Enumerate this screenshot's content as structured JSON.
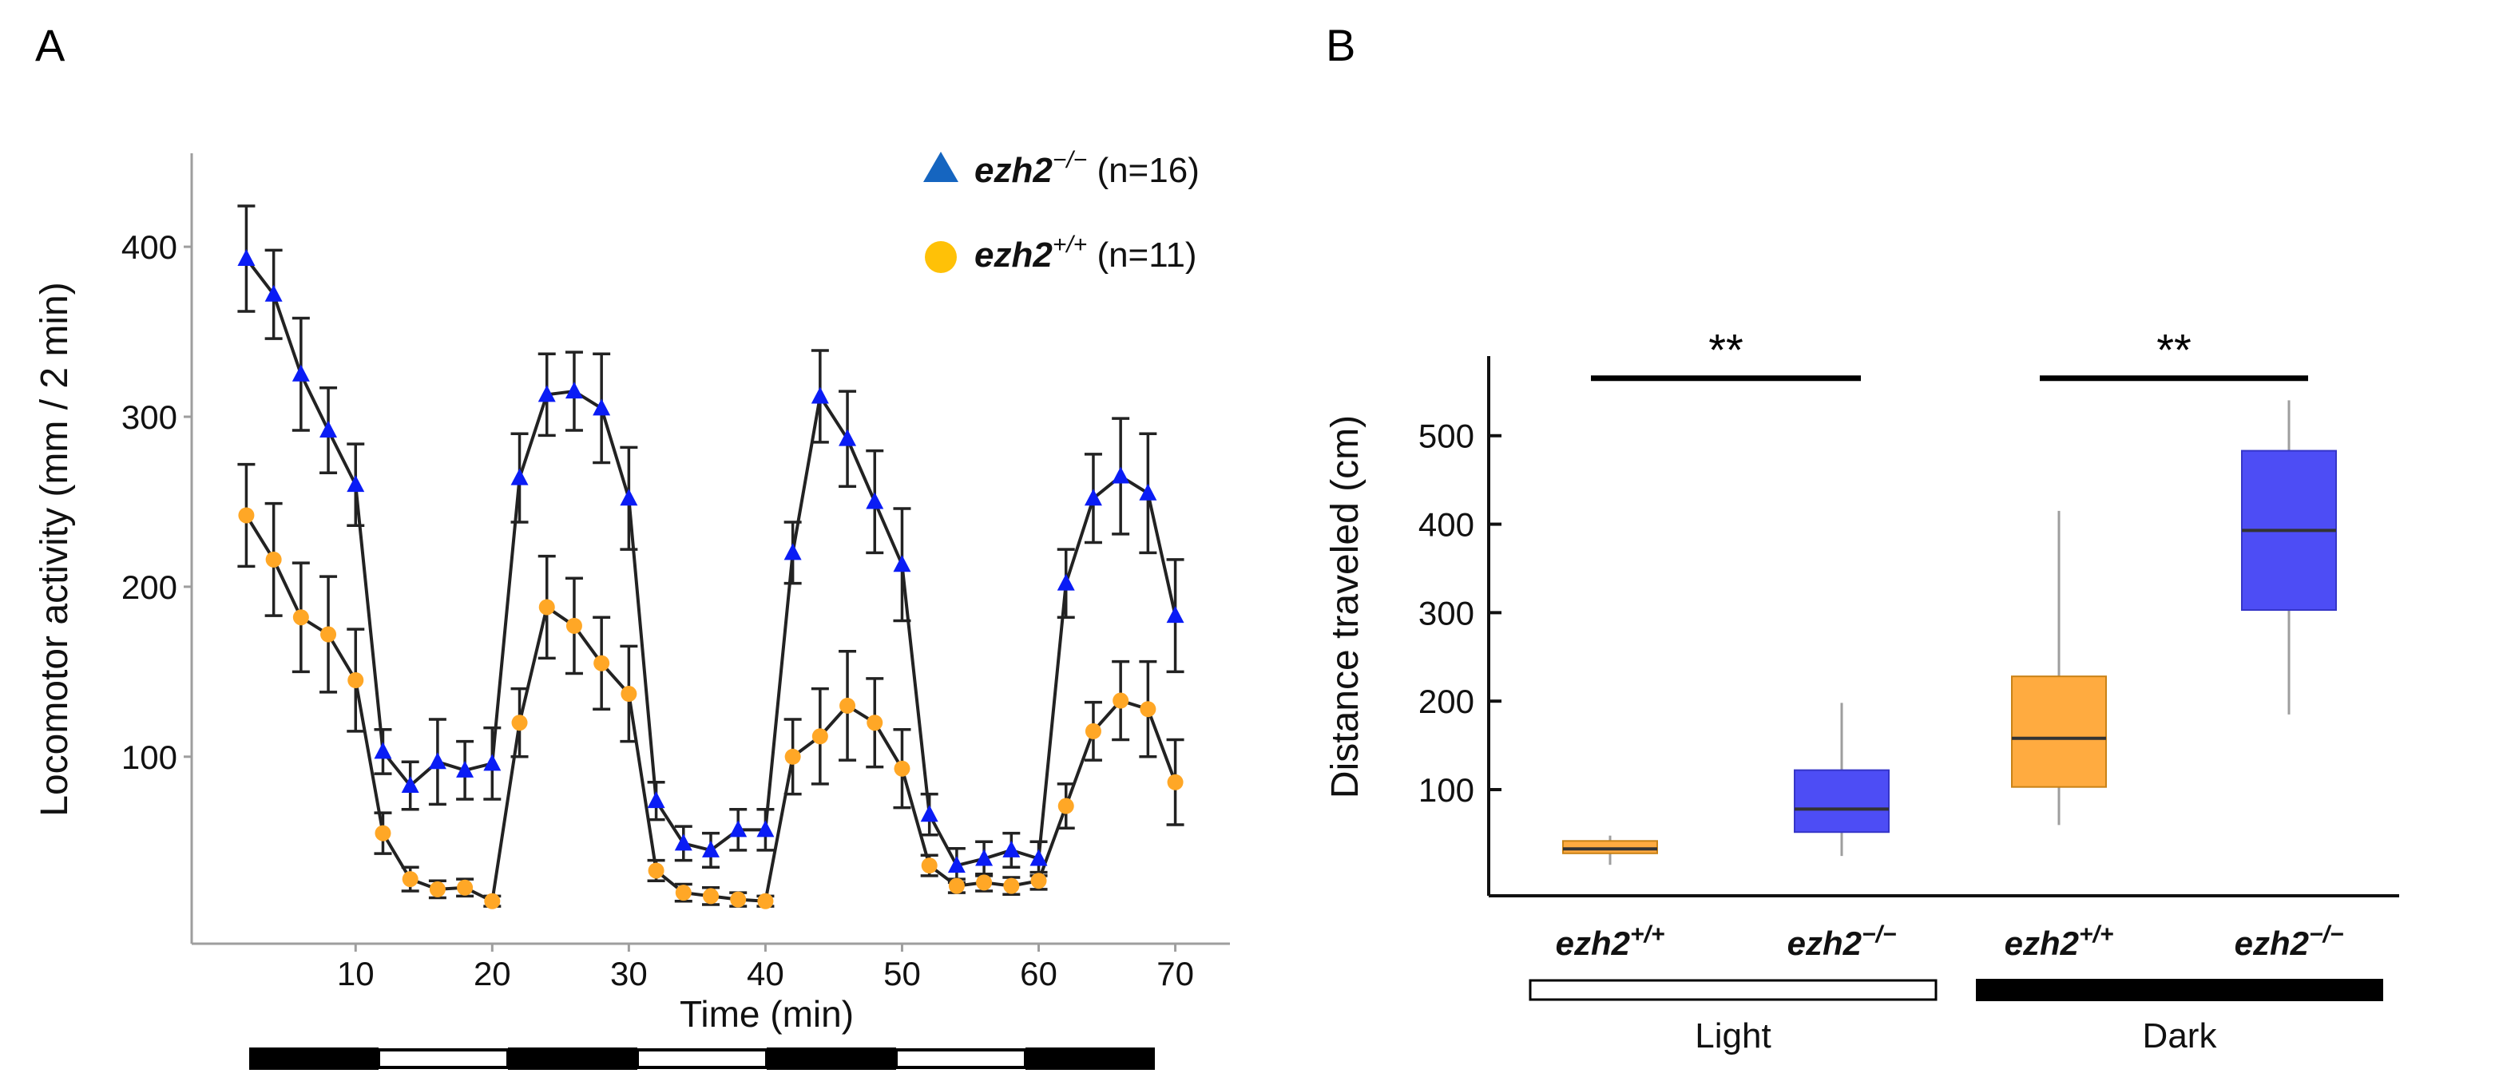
{
  "panels": {
    "a": "A",
    "b": "B"
  },
  "colors": {
    "ko": "#0a1cf5",
    "wt": "#ffa726",
    "ko_box": "#4d4df5",
    "wt_box": "#ffab40",
    "line": "#222222",
    "errorbar": "#222222"
  },
  "chart_data": [
    {
      "type": "line",
      "title": "",
      "xlabel": "Time (min)",
      "ylabel": "Locomotor activity (mm / 2 min)",
      "xlim": [
        -2,
        74
      ],
      "ylim": [
        -10,
        455
      ],
      "xticks": [
        10,
        20,
        30,
        40,
        50,
        60,
        70
      ],
      "yticks": [
        100,
        200,
        300,
        400
      ],
      "x": [
        2,
        4,
        6,
        8,
        10,
        12,
        14,
        16,
        18,
        20,
        22,
        24,
        26,
        28,
        30,
        32,
        34,
        36,
        38,
        40,
        42,
        44,
        46,
        48,
        50,
        52,
        54,
        56,
        58,
        60,
        62,
        64,
        66,
        68,
        70
      ],
      "series": [
        {
          "name": "ezh2−/−",
          "legend_symbol": "ezh2",
          "legend_sup": "−/−",
          "legend_n": "(n=16)",
          "marker": "triangle",
          "values": [
            393,
            372,
            325,
            292,
            260,
            103,
            83,
            97,
            92,
            96,
            264,
            313,
            315,
            305,
            252,
            74,
            49,
            45,
            57,
            57,
            220,
            312,
            287,
            250,
            213,
            66,
            36,
            40,
            45,
            40,
            202,
            252,
            265,
            255,
            183
          ],
          "errors": [
            31,
            26,
            33,
            25,
            24,
            13,
            14,
            25,
            17,
            21,
            26,
            24,
            23,
            32,
            30,
            11,
            10,
            10,
            12,
            12,
            18,
            27,
            28,
            30,
            33,
            12,
            10,
            10,
            10,
            10,
            20,
            26,
            34,
            35,
            33
          ]
        },
        {
          "name": "ezh2+/+",
          "legend_symbol": "ezh2",
          "legend_sup": "+/+",
          "legend_n": "(n=11)",
          "marker": "circle",
          "values": [
            242,
            216,
            182,
            172,
            145,
            55,
            28,
            22,
            23,
            15,
            120,
            188,
            177,
            155,
            137,
            33,
            20,
            18,
            16,
            15,
            100,
            112,
            130,
            120,
            93,
            36,
            24,
            26,
            24,
            27,
            71,
            115,
            133,
            128,
            85
          ],
          "errors": [
            30,
            33,
            32,
            34,
            30,
            12,
            7,
            5,
            5,
            3,
            20,
            30,
            28,
            27,
            28,
            6,
            5,
            5,
            4,
            3,
            22,
            28,
            32,
            26,
            23,
            6,
            4,
            5,
            5,
            5,
            13,
            17,
            23,
            28,
            25
          ]
        }
      ],
      "light_dark_bar": [
        {
          "start": 0,
          "end": 10,
          "phase": "dark"
        },
        {
          "start": 10,
          "end": 20,
          "phase": "light"
        },
        {
          "start": 20,
          "end": 30,
          "phase": "dark"
        },
        {
          "start": 30,
          "end": 40,
          "phase": "light"
        },
        {
          "start": 40,
          "end": 50,
          "phase": "dark"
        },
        {
          "start": 50,
          "end": 60,
          "phase": "light"
        },
        {
          "start": 60,
          "end": 70,
          "phase": "dark"
        }
      ]
    },
    {
      "type": "box",
      "title": "",
      "xlabel": "",
      "ylabel": "Distance traveled (cm)",
      "ylim": [
        -20,
        590
      ],
      "yticks": [
        100,
        200,
        300,
        400,
        500
      ],
      "categories": [
        {
          "label": "ezh2",
          "sup": "+/+",
          "group": "Light"
        },
        {
          "label": "ezh2",
          "sup": "−/−",
          "group": "Light"
        },
        {
          "label": "ezh2",
          "sup": "+/+",
          "group": "Dark"
        },
        {
          "label": "ezh2",
          "sup": "−/−",
          "group": "Dark"
        }
      ],
      "boxes": [
        {
          "min": 15,
          "q1": 28,
          "median": 33,
          "q3": 42,
          "max": 48,
          "color": "wt"
        },
        {
          "min": 25,
          "q1": 52,
          "median": 78,
          "q3": 122,
          "max": 198,
          "color": "ko"
        },
        {
          "min": 60,
          "q1": 103,
          "median": 158,
          "q3": 228,
          "max": 415,
          "color": "wt"
        },
        {
          "min": 185,
          "q1": 303,
          "median": 393,
          "q3": 483,
          "max": 540,
          "color": "ko"
        }
      ],
      "groups": [
        {
          "label": "Light",
          "fill": "white",
          "from": 0,
          "to": 1
        },
        {
          "label": "Dark",
          "fill": "black",
          "from": 2,
          "to": 3
        }
      ],
      "annotations": [
        {
          "text": "**",
          "from": 0,
          "to": 1,
          "y": 565
        },
        {
          "text": "**",
          "from": 2,
          "to": 3,
          "y": 565
        }
      ]
    }
  ]
}
